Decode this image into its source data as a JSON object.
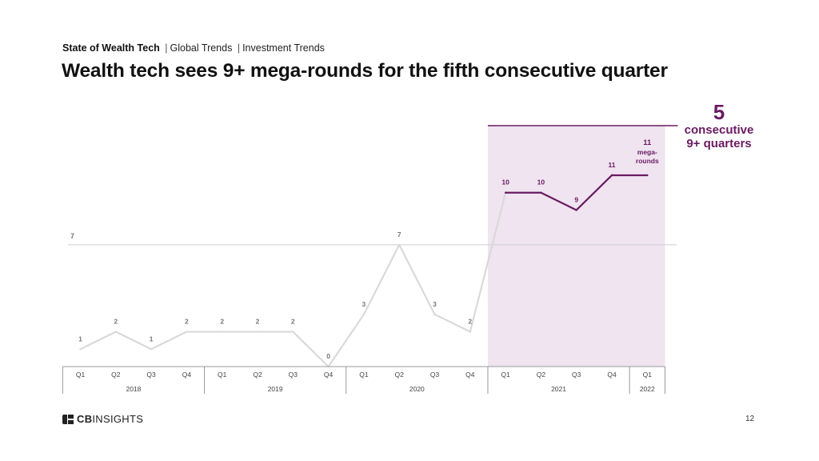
{
  "header": {
    "report": "State of Wealth Tech",
    "crumb_1": "Global Trends",
    "crumb_2": "Investment Trends",
    "separator": "|",
    "title": "Wealth tech sees 9+ mega-rounds for the fifth consecutive quarter"
  },
  "callout": {
    "number": "5",
    "line_1": "consecutive",
    "line_2": "9+ quarters"
  },
  "footer": {
    "logo_bold": "CB",
    "logo_rest": "INSIGHTS",
    "page_number": "12"
  },
  "colors": {
    "accent": "#6a1b62",
    "highlight_band": "#efe4ef",
    "gray_line": "#d9d9d9",
    "reference_line": "#cfcfcf"
  },
  "chart_data": {
    "type": "line",
    "categories": [
      "Q1",
      "Q2",
      "Q3",
      "Q4",
      "Q1",
      "Q2",
      "Q3",
      "Q4",
      "Q1",
      "Q2",
      "Q3",
      "Q4",
      "Q1",
      "Q2",
      "Q3",
      "Q4",
      "Q1"
    ],
    "years": [
      {
        "label": "2018",
        "count": 4
      },
      {
        "label": "2019",
        "count": 4
      },
      {
        "label": "2020",
        "count": 4
      },
      {
        "label": "2021",
        "count": 4
      },
      {
        "label": "2022",
        "count": 1
      }
    ],
    "values": [
      1,
      2,
      1,
      2,
      2,
      2,
      2,
      0,
      3,
      7,
      3,
      2,
      10,
      10,
      9,
      11,
      11
    ],
    "value_labels": [
      "1",
      "2",
      "1",
      "2",
      "2",
      "2",
      "2",
      "0",
      "3",
      "7",
      "3",
      "2",
      "10",
      "10",
      "9",
      "11",
      "11"
    ],
    "highlight_start_index": 12,
    "reference_line": {
      "value": 7,
      "label": "7"
    },
    "last_point_annotation": [
      "mega-",
      "rounds"
    ],
    "ylim": [
      0,
      11
    ],
    "grid": false,
    "legend": "none"
  }
}
